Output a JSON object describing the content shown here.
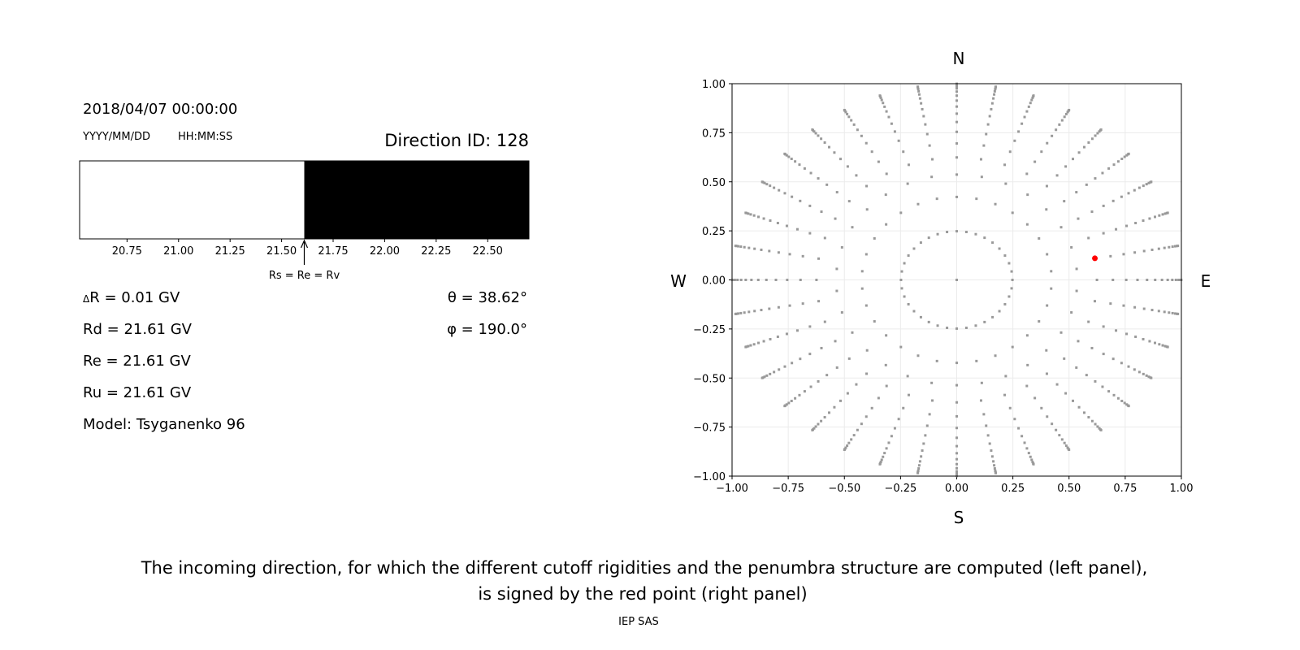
{
  "left_panel": {
    "datetime": "2018/04/07 00:00:00",
    "date_format": "YYYY/MM/DD",
    "time_format": "HH:MM:SS",
    "direction_id": "Direction ID: 128",
    "arrow_label": "Rs = Re = Rv",
    "params": [
      "R = 0.01 GV",
      "Rd = 21.61 GV",
      "Re = 21.61 GV",
      "Ru = 21.61 GV",
      "Model: Tsyganenko 96"
    ],
    "delta_symbol": "Δ",
    "theta": "θ = 38.62°",
    "phi": "φ = 190.0°"
  },
  "compass": {
    "north": "N",
    "south": "S",
    "west": "W",
    "east": "E"
  },
  "caption": {
    "line1": "The incoming direction, for which the different cutoff rigidities and the penumbra structure are computed (left panel),",
    "line2": "is signed by the red point (right panel)",
    "credit": "IEP SAS"
  },
  "chart_data": [
    {
      "type": "bar",
      "description_role": "penumbra strip",
      "xlim": [
        20.52,
        22.7
      ],
      "xticks": [
        "20.75",
        "21.00",
        "21.25",
        "21.50",
        "21.75",
        "22.00",
        "22.25",
        "22.50"
      ],
      "segments": [
        {
          "from": 20.52,
          "to": 21.61,
          "color": "#ffffff"
        },
        {
          "from": 21.61,
          "to": 22.7,
          "color": "#000000"
        }
      ],
      "annotation": {
        "x": 21.61,
        "text": "Rs = Re = Rv"
      }
    },
    {
      "type": "scatter",
      "xlim": [
        -1,
        1
      ],
      "ylim": [
        -1,
        1
      ],
      "xticks": [
        "−1.00",
        "−0.75",
        "−0.50",
        "−0.25",
        "0.00",
        "0.25",
        "0.50",
        "0.75",
        "1.00"
      ],
      "yticks": [
        "−1.00",
        "−0.75",
        "−0.50",
        "−0.25",
        "0.00",
        "0.25",
        "0.50",
        "0.75",
        "1.00"
      ],
      "grid": true,
      "point_color": "#999999",
      "direction_grid": {
        "center_point": [
          0,
          0
        ],
        "ring_cos_zenith": [
          0.96875,
          0.90625,
          0.84375,
          0.78125,
          0.71875,
          0.65625,
          0.59375,
          0.53125,
          0.46875,
          0.40625,
          0.34375,
          0.28125,
          0.21875,
          0.15625,
          0.09375,
          0.03125
        ],
        "ring_azimuth_counts": [
          36,
          30,
          30,
          36,
          36,
          36,
          36,
          36,
          36,
          36,
          36,
          36,
          36,
          36,
          36,
          36
        ]
      },
      "highlight": {
        "x": 0.615,
        "y": 0.11,
        "color": "#ff0000"
      }
    }
  ]
}
